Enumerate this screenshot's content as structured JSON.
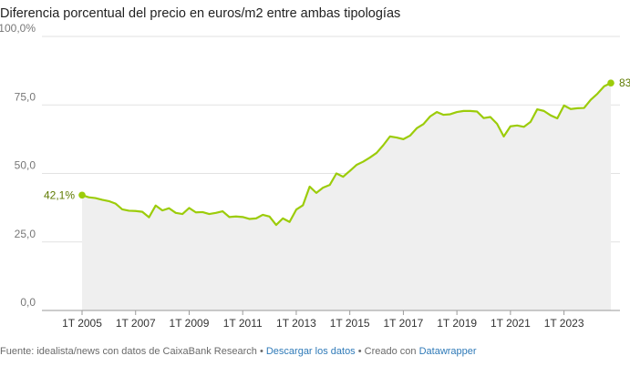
{
  "title": "Diferencia porcentual del precio en euros/m2 entre ambas tipologías",
  "footer": {
    "source": "Fuente: idealista/news con datos de CaixaBank Research",
    "separator": " • ",
    "download": "Descargar los datos",
    "created_with": "Creado con",
    "tool": "Datawrapper"
  },
  "colors": {
    "line": "#9ccc0a",
    "area": "#efefef",
    "grid": "#e2e2e2",
    "axis": "#9a9a9a",
    "tick_text": "#777777",
    "label_text": "#5e7a00"
  },
  "chart_data": {
    "type": "area",
    "xlim": [
      2005.0,
      2024.75
    ],
    "ylim": [
      0,
      100
    ],
    "grid": true,
    "y_ticks": [
      0,
      25,
      50,
      75,
      100
    ],
    "y_tick_labels": [
      "0,0",
      "25,0",
      "50,0",
      "75,0",
      "100,0%"
    ],
    "x_ticks": [
      2005,
      2007,
      2009,
      2011,
      2013,
      2015,
      2017,
      2019,
      2021,
      2023
    ],
    "x_tick_labels": [
      "1T 2005",
      "1T 2007",
      "1T 2009",
      "1T 2011",
      "1T 2013",
      "1T 2015",
      "1T 2017",
      "1T 2019",
      "1T 2021",
      "1T 2023"
    ],
    "start_label": "42,1%",
    "end_label": "83",
    "series": [
      {
        "values": [
          42.1,
          41.3,
          41.0,
          40.4,
          39.9,
          39.0,
          36.9,
          36.4,
          36.3,
          36.0,
          34.0,
          38.3,
          36.5,
          37.3,
          35.6,
          35.2,
          37.4,
          35.8,
          35.9,
          35.2,
          35.6,
          36.2,
          34.1,
          34.3,
          34.1,
          33.4,
          33.6,
          34.9,
          34.3,
          31.2,
          33.6,
          32.3,
          36.8,
          38.4,
          45.2,
          42.9,
          44.8,
          45.8,
          50.0,
          48.8,
          50.9,
          53.1,
          54.3,
          55.8,
          57.5,
          60.3,
          63.5,
          63.1,
          62.5,
          63.8,
          66.5,
          68.0,
          70.8,
          72.4,
          71.4,
          71.6,
          72.4,
          72.8,
          72.8,
          72.6,
          70.2,
          70.6,
          68.1,
          63.5,
          67.2,
          67.5,
          67.0,
          68.8,
          73.4,
          72.8,
          71.2,
          70.1,
          74.8,
          73.5,
          73.8,
          73.9,
          76.9,
          79.1,
          81.8,
          83.0
        ]
      }
    ]
  }
}
